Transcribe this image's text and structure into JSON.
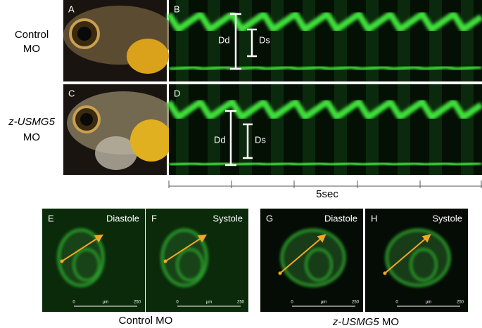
{
  "rows": [
    {
      "label_lines": [
        "Control",
        "MO"
      ],
      "photo_label": "A",
      "kymo_label": "B",
      "dd": "Dd",
      "ds": "Ds"
    },
    {
      "label_lines": [
        "z-USMG5",
        "MO"
      ],
      "photo_label": "C",
      "kymo_label": "D",
      "dd": "Dd",
      "ds": "Ds"
    }
  ],
  "time_scale": "5sec",
  "groups": [
    {
      "caption": [
        "Control MO"
      ],
      "panels": [
        {
          "label": "E",
          "phase": "Diastole",
          "scale": [
            "0",
            "µm",
            "250"
          ]
        },
        {
          "label": "F",
          "phase": "Systole",
          "scale": [
            "0",
            "µm",
            "250"
          ]
        }
      ]
    },
    {
      "caption": [
        "z-USMG5",
        " MO"
      ],
      "panels": [
        {
          "label": "G",
          "phase": "Diastole",
          "scale": [
            "0",
            "µm",
            "250"
          ]
        },
        {
          "label": "H",
          "phase": "Systole",
          "scale": [
            "0",
            "µm",
            "250"
          ]
        }
      ]
    }
  ]
}
